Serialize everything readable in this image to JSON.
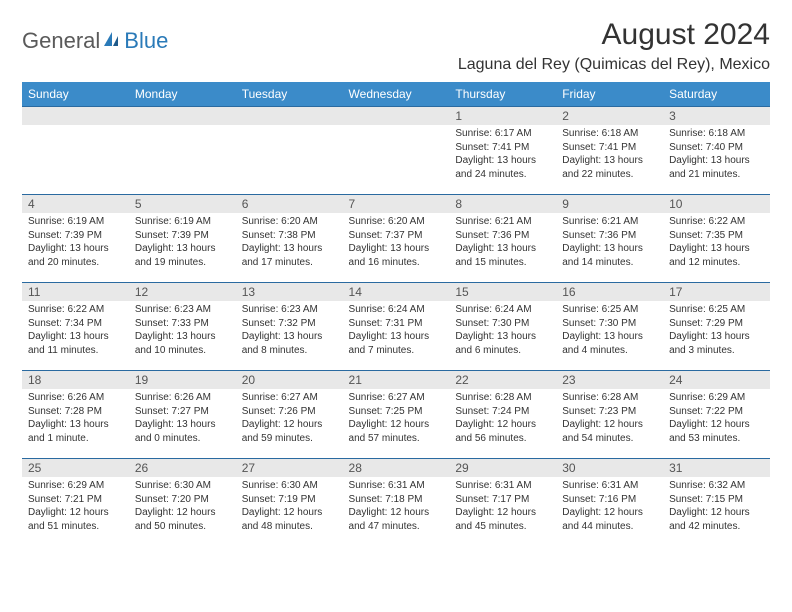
{
  "logo": {
    "general": "General",
    "blue": "Blue"
  },
  "month_title": "August 2024",
  "location": "Laguna del Rey (Quimicas del Rey), Mexico",
  "day_headers": [
    "Sunday",
    "Monday",
    "Tuesday",
    "Wednesday",
    "Thursday",
    "Friday",
    "Saturday"
  ],
  "colors": {
    "header_bg": "#3b8bc9",
    "header_text": "#ffffff",
    "daynum_bg": "#e8e8e8",
    "border": "#2a6aa0",
    "text": "#333333",
    "logo_gray": "#5a5a5a",
    "logo_blue": "#2a7ab8"
  },
  "weeks": [
    [
      {
        "num": "",
        "sunrise": "",
        "sunset": "",
        "daylight": ""
      },
      {
        "num": "",
        "sunrise": "",
        "sunset": "",
        "daylight": ""
      },
      {
        "num": "",
        "sunrise": "",
        "sunset": "",
        "daylight": ""
      },
      {
        "num": "",
        "sunrise": "",
        "sunset": "",
        "daylight": ""
      },
      {
        "num": "1",
        "sunrise": "Sunrise: 6:17 AM",
        "sunset": "Sunset: 7:41 PM",
        "daylight": "Daylight: 13 hours and 24 minutes."
      },
      {
        "num": "2",
        "sunrise": "Sunrise: 6:18 AM",
        "sunset": "Sunset: 7:41 PM",
        "daylight": "Daylight: 13 hours and 22 minutes."
      },
      {
        "num": "3",
        "sunrise": "Sunrise: 6:18 AM",
        "sunset": "Sunset: 7:40 PM",
        "daylight": "Daylight: 13 hours and 21 minutes."
      }
    ],
    [
      {
        "num": "4",
        "sunrise": "Sunrise: 6:19 AM",
        "sunset": "Sunset: 7:39 PM",
        "daylight": "Daylight: 13 hours and 20 minutes."
      },
      {
        "num": "5",
        "sunrise": "Sunrise: 6:19 AM",
        "sunset": "Sunset: 7:39 PM",
        "daylight": "Daylight: 13 hours and 19 minutes."
      },
      {
        "num": "6",
        "sunrise": "Sunrise: 6:20 AM",
        "sunset": "Sunset: 7:38 PM",
        "daylight": "Daylight: 13 hours and 17 minutes."
      },
      {
        "num": "7",
        "sunrise": "Sunrise: 6:20 AM",
        "sunset": "Sunset: 7:37 PM",
        "daylight": "Daylight: 13 hours and 16 minutes."
      },
      {
        "num": "8",
        "sunrise": "Sunrise: 6:21 AM",
        "sunset": "Sunset: 7:36 PM",
        "daylight": "Daylight: 13 hours and 15 minutes."
      },
      {
        "num": "9",
        "sunrise": "Sunrise: 6:21 AM",
        "sunset": "Sunset: 7:36 PM",
        "daylight": "Daylight: 13 hours and 14 minutes."
      },
      {
        "num": "10",
        "sunrise": "Sunrise: 6:22 AM",
        "sunset": "Sunset: 7:35 PM",
        "daylight": "Daylight: 13 hours and 12 minutes."
      }
    ],
    [
      {
        "num": "11",
        "sunrise": "Sunrise: 6:22 AM",
        "sunset": "Sunset: 7:34 PM",
        "daylight": "Daylight: 13 hours and 11 minutes."
      },
      {
        "num": "12",
        "sunrise": "Sunrise: 6:23 AM",
        "sunset": "Sunset: 7:33 PM",
        "daylight": "Daylight: 13 hours and 10 minutes."
      },
      {
        "num": "13",
        "sunrise": "Sunrise: 6:23 AM",
        "sunset": "Sunset: 7:32 PM",
        "daylight": "Daylight: 13 hours and 8 minutes."
      },
      {
        "num": "14",
        "sunrise": "Sunrise: 6:24 AM",
        "sunset": "Sunset: 7:31 PM",
        "daylight": "Daylight: 13 hours and 7 minutes."
      },
      {
        "num": "15",
        "sunrise": "Sunrise: 6:24 AM",
        "sunset": "Sunset: 7:30 PM",
        "daylight": "Daylight: 13 hours and 6 minutes."
      },
      {
        "num": "16",
        "sunrise": "Sunrise: 6:25 AM",
        "sunset": "Sunset: 7:30 PM",
        "daylight": "Daylight: 13 hours and 4 minutes."
      },
      {
        "num": "17",
        "sunrise": "Sunrise: 6:25 AM",
        "sunset": "Sunset: 7:29 PM",
        "daylight": "Daylight: 13 hours and 3 minutes."
      }
    ],
    [
      {
        "num": "18",
        "sunrise": "Sunrise: 6:26 AM",
        "sunset": "Sunset: 7:28 PM",
        "daylight": "Daylight: 13 hours and 1 minute."
      },
      {
        "num": "19",
        "sunrise": "Sunrise: 6:26 AM",
        "sunset": "Sunset: 7:27 PM",
        "daylight": "Daylight: 13 hours and 0 minutes."
      },
      {
        "num": "20",
        "sunrise": "Sunrise: 6:27 AM",
        "sunset": "Sunset: 7:26 PM",
        "daylight": "Daylight: 12 hours and 59 minutes."
      },
      {
        "num": "21",
        "sunrise": "Sunrise: 6:27 AM",
        "sunset": "Sunset: 7:25 PM",
        "daylight": "Daylight: 12 hours and 57 minutes."
      },
      {
        "num": "22",
        "sunrise": "Sunrise: 6:28 AM",
        "sunset": "Sunset: 7:24 PM",
        "daylight": "Daylight: 12 hours and 56 minutes."
      },
      {
        "num": "23",
        "sunrise": "Sunrise: 6:28 AM",
        "sunset": "Sunset: 7:23 PM",
        "daylight": "Daylight: 12 hours and 54 minutes."
      },
      {
        "num": "24",
        "sunrise": "Sunrise: 6:29 AM",
        "sunset": "Sunset: 7:22 PM",
        "daylight": "Daylight: 12 hours and 53 minutes."
      }
    ],
    [
      {
        "num": "25",
        "sunrise": "Sunrise: 6:29 AM",
        "sunset": "Sunset: 7:21 PM",
        "daylight": "Daylight: 12 hours and 51 minutes."
      },
      {
        "num": "26",
        "sunrise": "Sunrise: 6:30 AM",
        "sunset": "Sunset: 7:20 PM",
        "daylight": "Daylight: 12 hours and 50 minutes."
      },
      {
        "num": "27",
        "sunrise": "Sunrise: 6:30 AM",
        "sunset": "Sunset: 7:19 PM",
        "daylight": "Daylight: 12 hours and 48 minutes."
      },
      {
        "num": "28",
        "sunrise": "Sunrise: 6:31 AM",
        "sunset": "Sunset: 7:18 PM",
        "daylight": "Daylight: 12 hours and 47 minutes."
      },
      {
        "num": "29",
        "sunrise": "Sunrise: 6:31 AM",
        "sunset": "Sunset: 7:17 PM",
        "daylight": "Daylight: 12 hours and 45 minutes."
      },
      {
        "num": "30",
        "sunrise": "Sunrise: 6:31 AM",
        "sunset": "Sunset: 7:16 PM",
        "daylight": "Daylight: 12 hours and 44 minutes."
      },
      {
        "num": "31",
        "sunrise": "Sunrise: 6:32 AM",
        "sunset": "Sunset: 7:15 PM",
        "daylight": "Daylight: 12 hours and 42 minutes."
      }
    ]
  ]
}
